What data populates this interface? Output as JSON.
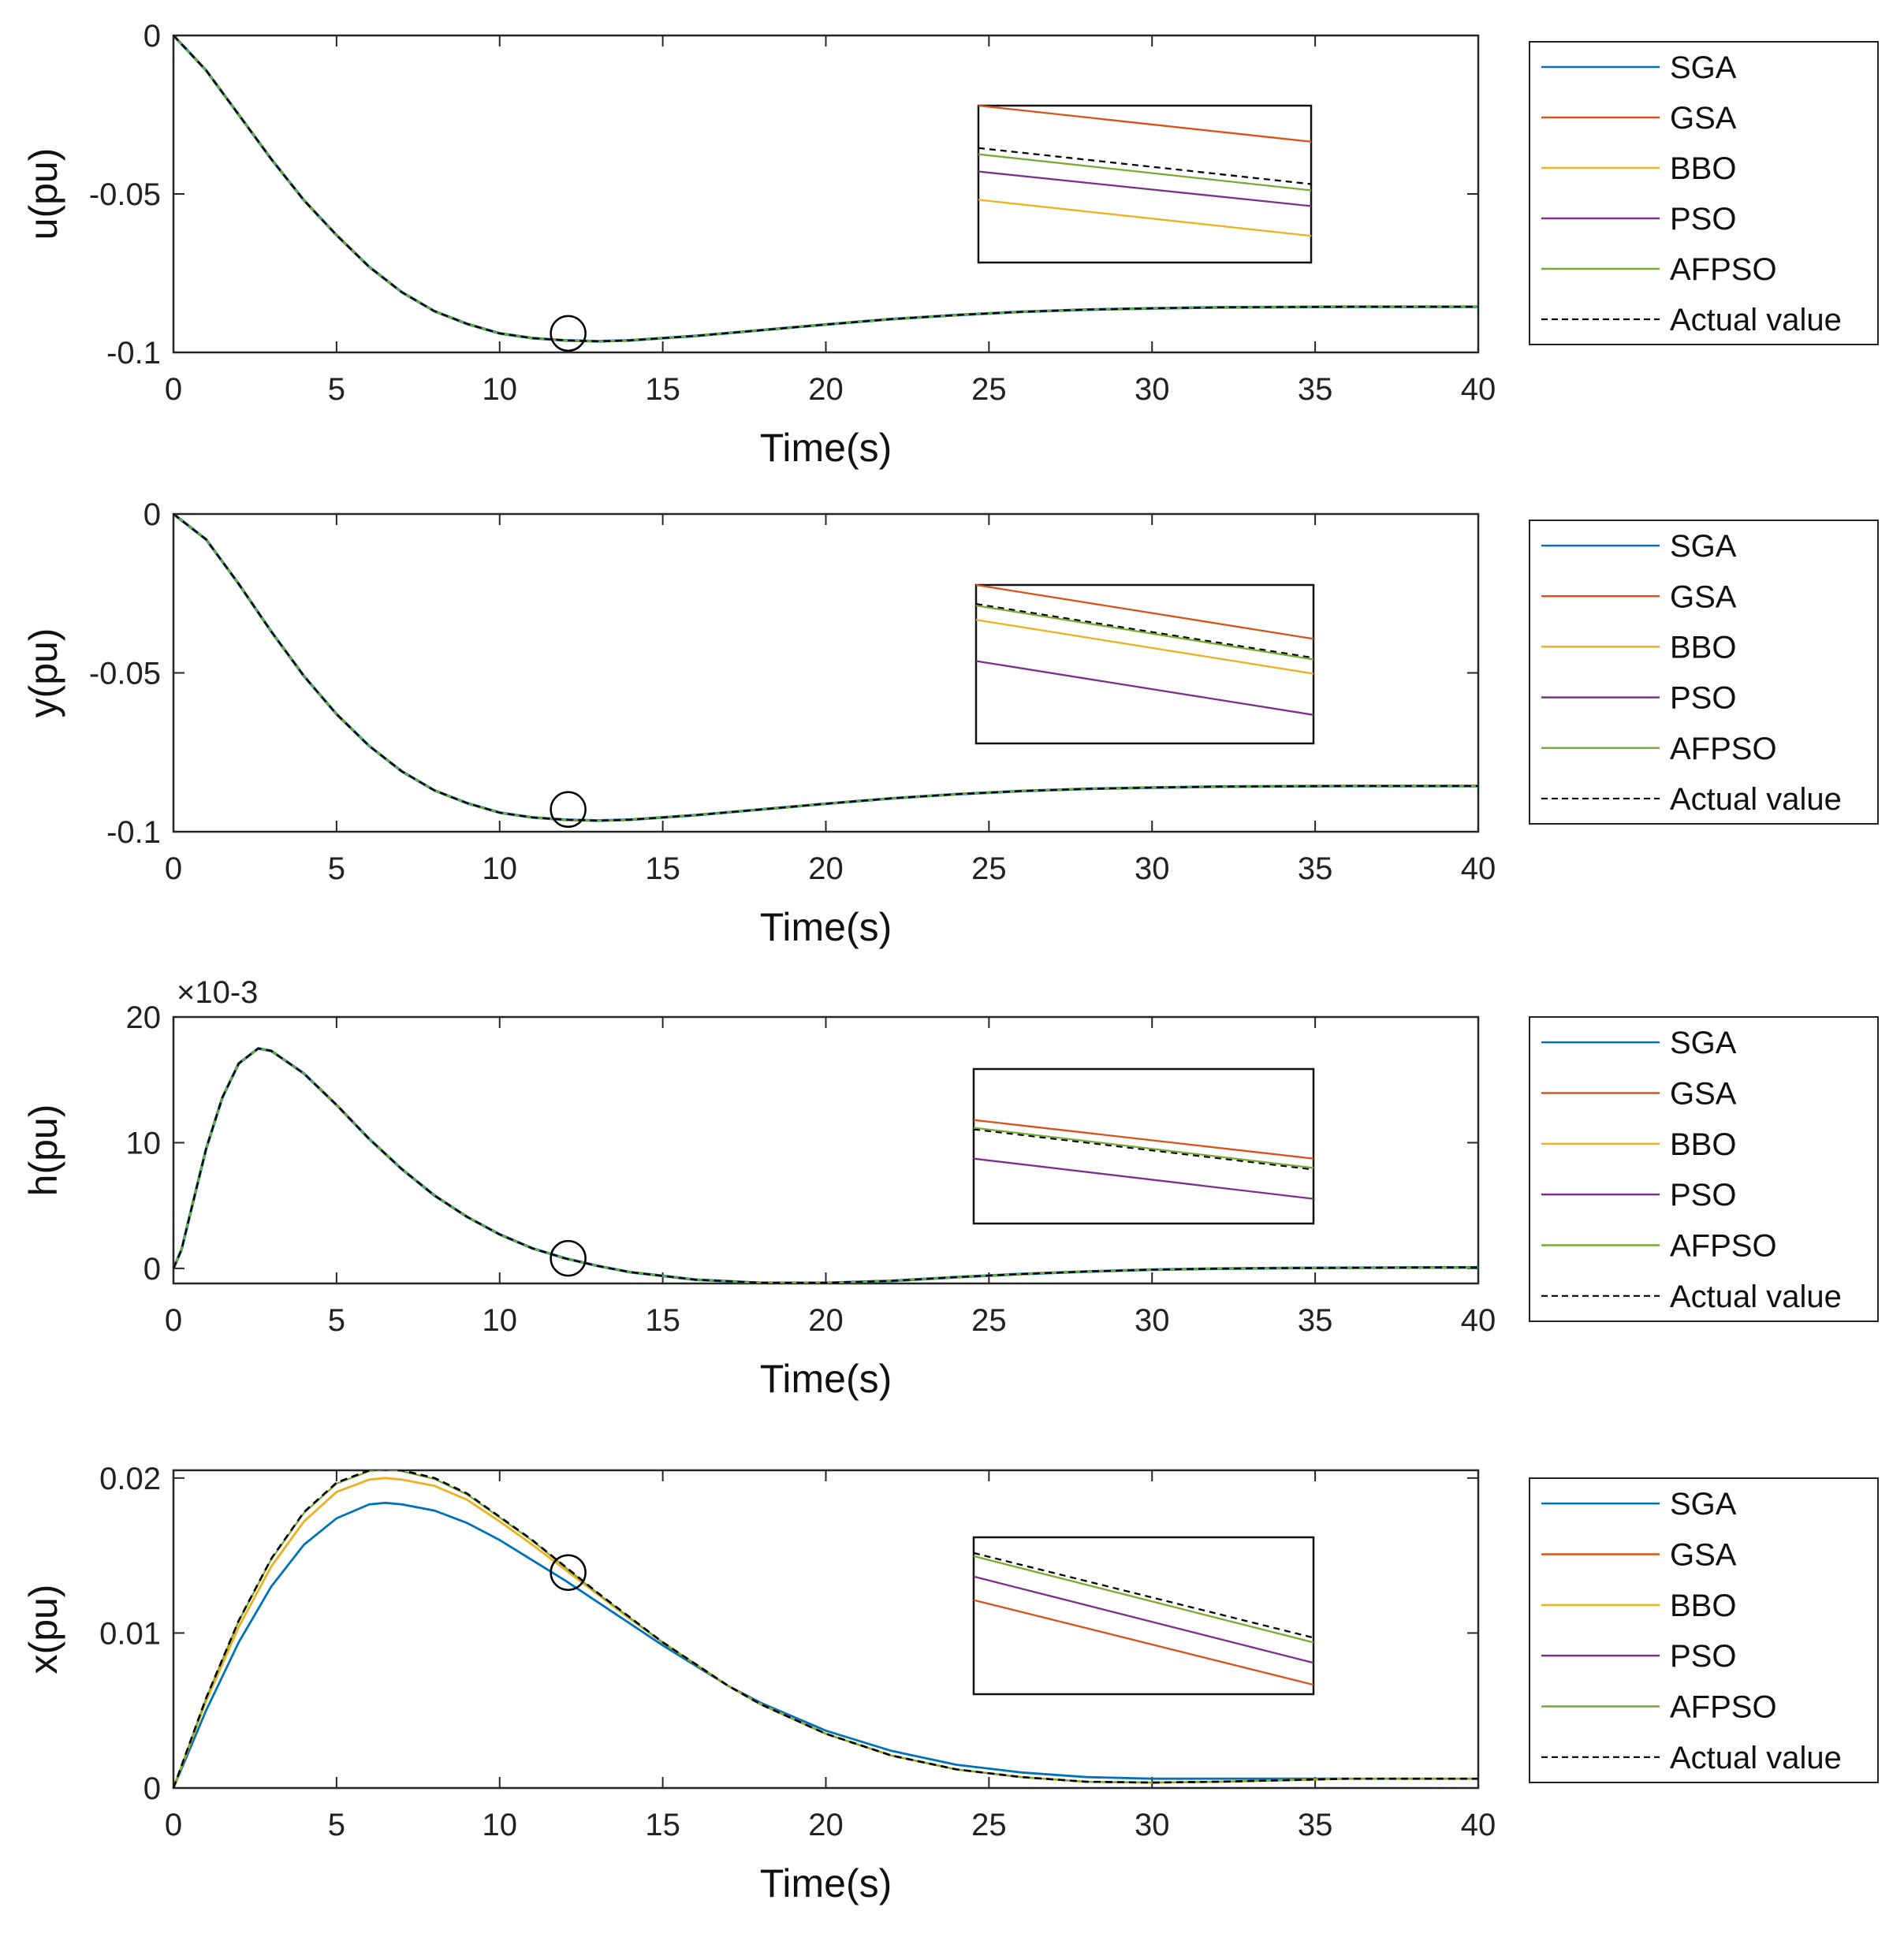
{
  "chart_data": [
    {
      "type": "line",
      "id": "u",
      "ylabel": "u(pu)",
      "xlabel": "Time(s)",
      "xlim": [
        0,
        40
      ],
      "ylim": [
        -0.1,
        0
      ],
      "xticks": [
        "0",
        "5",
        "10",
        "15",
        "20",
        "25",
        "30",
        "35",
        "40"
      ],
      "yticks": [
        {
          "v": 0,
          "label": "0"
        },
        {
          "v": -0.05,
          "label": "-0.05"
        },
        {
          "v": -0.1,
          "label": "-0.1"
        }
      ],
      "x": [
        0,
        1,
        2,
        3,
        4,
        5,
        6,
        7,
        8,
        9,
        10,
        11,
        12,
        13,
        14,
        15,
        16,
        18,
        20,
        22,
        24,
        26,
        28,
        30,
        32,
        34,
        36,
        38,
        40
      ],
      "y": [
        0,
        -0.011,
        -0.025,
        -0.039,
        -0.052,
        -0.063,
        -0.073,
        -0.081,
        -0.087,
        -0.091,
        -0.094,
        -0.0955,
        -0.0962,
        -0.0965,
        -0.0962,
        -0.0955,
        -0.0948,
        -0.093,
        -0.0912,
        -0.0895,
        -0.0882,
        -0.0872,
        -0.0865,
        -0.0861,
        -0.0858,
        -0.0857,
        -0.0856,
        -0.0856,
        -0.0856
      ],
      "marker": {
        "x": 12.1,
        "y": -0.094
      },
      "inset": [
        {
          "name": "GSA",
          "y0": 0.0,
          "y1": 0.23
        },
        {
          "name": "Actual value",
          "y0": 0.27,
          "y1": 0.5
        },
        {
          "name": "AFPSO",
          "y0": 0.31,
          "y1": 0.54
        },
        {
          "name": "PSO",
          "y0": 0.42,
          "y1": 0.64
        },
        {
          "name": "BBO",
          "y0": 0.6,
          "y1": 0.83
        }
      ]
    },
    {
      "type": "line",
      "id": "y",
      "ylabel": "y(pu)",
      "xlabel": "Time(s)",
      "xlim": [
        0,
        40
      ],
      "ylim": [
        -0.1,
        0
      ],
      "xticks": [
        "0",
        "5",
        "10",
        "15",
        "20",
        "25",
        "30",
        "35",
        "40"
      ],
      "yticks": [
        {
          "v": 0,
          "label": "0"
        },
        {
          "v": -0.05,
          "label": "-0.05"
        },
        {
          "v": -0.1,
          "label": "-0.1"
        }
      ],
      "x": [
        0,
        1,
        2,
        3,
        4,
        5,
        6,
        7,
        8,
        9,
        10,
        11,
        12,
        13,
        14,
        15,
        16,
        18,
        20,
        22,
        24,
        26,
        28,
        30,
        32,
        34,
        36,
        38,
        40
      ],
      "y": [
        0,
        -0.008,
        -0.022,
        -0.037,
        -0.051,
        -0.063,
        -0.073,
        -0.081,
        -0.087,
        -0.091,
        -0.094,
        -0.0955,
        -0.0962,
        -0.0965,
        -0.0962,
        -0.0955,
        -0.0948,
        -0.093,
        -0.0912,
        -0.0895,
        -0.0882,
        -0.0872,
        -0.0865,
        -0.0861,
        -0.0858,
        -0.0857,
        -0.0856,
        -0.0856,
        -0.0856
      ],
      "marker": {
        "x": 12.1,
        "y": -0.093
      },
      "inset": [
        {
          "name": "GSA",
          "y0": 0.0,
          "y1": 0.34
        },
        {
          "name": "Actual value",
          "y0": 0.12,
          "y1": 0.46
        },
        {
          "name": "AFPSO",
          "y0": 0.13,
          "y1": 0.47
        },
        {
          "name": "BBO",
          "y0": 0.22,
          "y1": 0.56
        },
        {
          "name": "PSO",
          "y0": 0.48,
          "y1": 0.82
        }
      ]
    },
    {
      "type": "line",
      "id": "h",
      "ylabel": "h(pu)",
      "xlabel": "Time(s)",
      "exponent": "×10-3",
      "xlim": [
        0,
        40
      ],
      "ylim": [
        -1.2,
        20
      ],
      "xticks": [
        "0",
        "5",
        "10",
        "15",
        "20",
        "25",
        "30",
        "35",
        "40"
      ],
      "yticks": [
        {
          "v": 20,
          "label": "20"
        },
        {
          "v": 10,
          "label": "10"
        },
        {
          "v": 0,
          "label": "0"
        }
      ],
      "x": [
        0,
        0.25,
        0.5,
        1,
        1.5,
        2,
        2.6,
        3,
        4,
        5,
        6,
        7,
        8,
        9,
        10,
        11,
        12,
        13,
        14,
        15,
        16,
        18,
        20,
        22,
        24,
        26,
        28,
        30,
        32,
        34,
        36,
        38,
        40
      ],
      "y": [
        0,
        1.5,
        4.2,
        9.5,
        13.6,
        16.3,
        17.5,
        17.3,
        15.5,
        13.0,
        10.3,
        7.9,
        5.8,
        4.1,
        2.7,
        1.6,
        0.8,
        0.2,
        -0.3,
        -0.6,
        -0.9,
        -1.15,
        -1.15,
        -1.0,
        -0.7,
        -0.45,
        -0.25,
        -0.1,
        -0.02,
        0.02,
        0.05,
        0.07,
        0.08
      ],
      "marker": {
        "x": 12.1,
        "y": 0.8
      },
      "inset": [
        {
          "name": "GSA",
          "y0": 0.33,
          "y1": 0.58
        },
        {
          "name": "Actual value",
          "y0": 0.39,
          "y1": 0.65
        },
        {
          "name": "AFPSO",
          "y0": 0.38,
          "y1": 0.64
        },
        {
          "name": "PSO",
          "y0": 0.58,
          "y1": 0.84
        }
      ]
    },
    {
      "type": "line",
      "id": "x",
      "ylabel": "x(pu)",
      "xlabel": "Time(s)",
      "xlim": [
        0,
        40
      ],
      "ylim": [
        0,
        0.0205
      ],
      "xticks": [
        "0",
        "5",
        "10",
        "15",
        "20",
        "25",
        "30",
        "35",
        "40"
      ],
      "yticks": [
        {
          "v": 0.02,
          "label": "0.02"
        },
        {
          "v": 0.01,
          "label": "0.01"
        },
        {
          "v": 0,
          "label": "0"
        }
      ],
      "series_shapes": [
        {
          "name": "Actual value",
          "x": [
            0,
            1,
            2,
            3,
            4,
            5,
            6,
            6.5,
            7,
            8,
            9,
            10,
            11,
            12,
            13,
            14,
            15,
            16,
            17,
            18,
            20,
            22,
            24,
            26,
            28,
            30,
            32,
            34,
            36,
            38,
            40
          ],
          "y": [
            0,
            0.0058,
            0.0108,
            0.0148,
            0.0178,
            0.0197,
            0.0205,
            0.0206,
            0.0205,
            0.02,
            0.019,
            0.0175,
            0.016,
            0.0143,
            0.0126,
            0.011,
            0.0094,
            0.008,
            0.0066,
            0.0054,
            0.0035,
            0.0021,
            0.0012,
            0.0007,
            0.0004,
            0.00035,
            0.0004,
            0.0005,
            0.0006,
            0.0006,
            0.0006
          ]
        },
        {
          "name": "BBO",
          "x": [
            0,
            1,
            2,
            3,
            4,
            5,
            6,
            6.5,
            7,
            8,
            9,
            10,
            11,
            12,
            13,
            14,
            15,
            16,
            17,
            18,
            20,
            22,
            24,
            26,
            28,
            30,
            32,
            34,
            36,
            38,
            40
          ],
          "y": [
            0,
            0.0056,
            0.0104,
            0.0143,
            0.0172,
            0.0191,
            0.0199,
            0.02,
            0.0199,
            0.0195,
            0.0186,
            0.0172,
            0.0157,
            0.0141,
            0.0125,
            0.0109,
            0.0094,
            0.008,
            0.0066,
            0.0054,
            0.0035,
            0.0021,
            0.0012,
            0.0007,
            0.0004,
            0.00035,
            0.0004,
            0.0005,
            0.0006,
            0.0006,
            0.0006
          ]
        },
        {
          "name": "SGA",
          "x": [
            0,
            1,
            2,
            3,
            4,
            5,
            6,
            6.5,
            7,
            8,
            9,
            10,
            11,
            12,
            13,
            14,
            15,
            16,
            17,
            18,
            20,
            22,
            24,
            26,
            28,
            30,
            32,
            34,
            36,
            38,
            40
          ],
          "y": [
            0,
            0.005,
            0.0094,
            0.013,
            0.0157,
            0.0174,
            0.0183,
            0.0184,
            0.0183,
            0.0179,
            0.0171,
            0.016,
            0.0147,
            0.0134,
            0.012,
            0.0106,
            0.0092,
            0.0079,
            0.0066,
            0.0055,
            0.0037,
            0.0024,
            0.0015,
            0.001,
            0.0007,
            0.0006,
            0.0006,
            0.0006,
            0.0006,
            0.0006,
            0.0006
          ]
        }
      ],
      "marker": {
        "x": 12.1,
        "y": 0.0139
      },
      "inset": [
        {
          "name": "Actual value",
          "y0": 0.1,
          "y1": 0.64
        },
        {
          "name": "AFPSO",
          "y0": 0.12,
          "y1": 0.67
        },
        {
          "name": "PSO",
          "y0": 0.25,
          "y1": 0.8
        },
        {
          "name": "GSA",
          "y0": 0.4,
          "y1": 0.94
        }
      ]
    }
  ],
  "legend": {
    "entries": [
      {
        "name": "SGA",
        "color": "#0072BD",
        "style": "solid"
      },
      {
        "name": "GSA",
        "color": "#D95319",
        "style": "solid"
      },
      {
        "name": "BBO",
        "color": "#EDB120",
        "style": "solid"
      },
      {
        "name": "PSO",
        "color": "#7E2F8E",
        "style": "solid"
      },
      {
        "name": "AFPSO",
        "color": "#77AC30",
        "style": "solid"
      },
      {
        "name": "Actual value",
        "color": "#000000",
        "style": "dashed"
      }
    ]
  },
  "colors": {
    "SGA": "#0072BD",
    "GSA": "#D95319",
    "BBO": "#EDB120",
    "PSO": "#7E2F8E",
    "AFPSO": "#77AC30",
    "Actual value": "#000000",
    "axes": "#262626"
  }
}
